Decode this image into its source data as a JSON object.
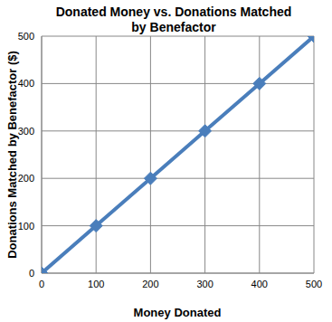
{
  "chart_data": {
    "type": "line",
    "title": "Donated Money vs. Donations Matched by Benefactor",
    "x_label": "Money Donated",
    "y_label": "Donations Matched by Benefactor ($)",
    "x": [
      0,
      100,
      200,
      300,
      400,
      500
    ],
    "values": [
      0,
      100,
      200,
      300,
      400,
      500
    ],
    "color": "#4a7ebb",
    "marker": "diamond",
    "xlim": [
      0,
      500
    ],
    "xticks": [
      0,
      100,
      200,
      300,
      400,
      500
    ],
    "ylim": [
      0,
      500
    ],
    "yticks": [
      0,
      100,
      200,
      300,
      400,
      500
    ],
    "grid": true
  }
}
